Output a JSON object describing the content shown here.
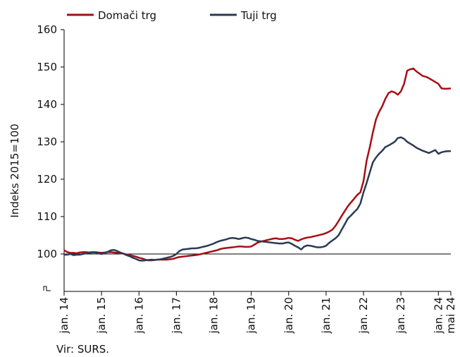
{
  "chart_data": {
    "type": "line",
    "y_label": "Indeks 2015=100",
    "source": "Vir: SURS.",
    "categories": [
      "jan. 14",
      null,
      null,
      null,
      null,
      null,
      null,
      null,
      null,
      null,
      null,
      null,
      "jan. 15",
      null,
      null,
      null,
      null,
      null,
      null,
      null,
      null,
      null,
      null,
      null,
      "jan. 16",
      null,
      null,
      null,
      null,
      null,
      null,
      null,
      null,
      null,
      null,
      null,
      "jan. 17",
      null,
      null,
      null,
      null,
      null,
      null,
      null,
      null,
      null,
      null,
      null,
      "jan. 18",
      null,
      null,
      null,
      null,
      null,
      null,
      null,
      null,
      null,
      null,
      null,
      "jan. 19",
      null,
      null,
      null,
      null,
      null,
      null,
      null,
      null,
      null,
      null,
      null,
      "jan. 20",
      null,
      null,
      null,
      null,
      null,
      null,
      null,
      null,
      null,
      null,
      null,
      "jan. 21",
      null,
      null,
      null,
      null,
      null,
      null,
      null,
      null,
      null,
      null,
      null,
      "jan. 22",
      null,
      null,
      null,
      null,
      null,
      null,
      null,
      null,
      null,
      null,
      null,
      "jan. 23",
      null,
      null,
      null,
      null,
      null,
      null,
      null,
      null,
      null,
      null,
      null,
      "jan. 24",
      null,
      null,
      null,
      "mai 24"
    ],
    "series": [
      {
        "name": "Domači trg",
        "color": "#a50f15",
        "values": [
          101,
          100.5,
          100.3,
          100.3,
          100.2,
          100.4,
          100.5,
          100.5,
          100.4,
          100.5,
          100.5,
          100.4,
          100.3,
          100.4,
          100.5,
          100.5,
          100.4,
          100.3,
          100.2,
          100.1,
          99.9,
          99.7,
          99.5,
          99.3,
          99.0,
          98.8,
          98.5,
          98.3,
          98.3,
          98.4,
          98.5,
          98.5,
          98.5,
          98.5,
          98.6,
          98.7,
          99.0,
          99.2,
          99.3,
          99.4,
          99.5,
          99.6,
          99.7,
          99.8,
          100.0,
          100.2,
          100.4,
          100.6,
          100.8,
          101.0,
          101.3,
          101.5,
          101.6,
          101.7,
          101.8,
          101.9,
          102.0,
          102.0,
          101.9,
          101.9,
          102.0,
          102.5,
          103.0,
          103.3,
          103.5,
          103.7,
          103.9,
          104.1,
          104.2,
          104.0,
          104.0,
          104.1,
          104.3,
          104.2,
          103.8,
          103.5,
          103.9,
          104.2,
          104.4,
          104.5,
          104.7,
          104.9,
          105.1,
          105.3,
          105.6,
          106.0,
          106.5,
          107.5,
          108.8,
          110.2,
          111.5,
          112.8,
          113.8,
          114.8,
          115.8,
          116.5,
          119.5,
          125.0,
          128.5,
          132.5,
          136.0,
          138.0,
          139.5,
          141.5,
          143.0,
          143.5,
          143.2,
          142.6,
          143.5,
          145.5,
          149.0,
          149.4,
          149.6,
          148.8,
          148.2,
          147.6,
          147.4,
          147.0,
          146.5,
          146.0,
          145.5,
          144.3,
          144.2,
          144.2,
          144.3
        ]
      },
      {
        "name": "Tuji trg",
        "color": "#2b3a55",
        "values": [
          99.8,
          99.8,
          100.0,
          99.7,
          99.8,
          99.8,
          100.0,
          100.2,
          100.3,
          100.4,
          100.4,
          100.2,
          100.0,
          100.2,
          100.6,
          101.0,
          101.1,
          100.8,
          100.4,
          100.1,
          99.7,
          99.4,
          99.0,
          98.7,
          98.3,
          98.2,
          98.3,
          98.4,
          98.5,
          98.4,
          98.5,
          98.6,
          98.8,
          99.0,
          99.2,
          99.5,
          100.0,
          100.8,
          101.2,
          101.3,
          101.4,
          101.5,
          101.5,
          101.6,
          101.8,
          102.0,
          102.2,
          102.5,
          102.8,
          103.2,
          103.5,
          103.7,
          103.9,
          104.2,
          104.3,
          104.2,
          104.0,
          104.2,
          104.4,
          104.3,
          104.0,
          103.8,
          103.5,
          103.4,
          103.3,
          103.2,
          103.1,
          103.0,
          102.9,
          102.8,
          102.8,
          103.0,
          103.1,
          102.7,
          102.2,
          101.8,
          101.2,
          102.0,
          102.3,
          102.2,
          102.0,
          101.8,
          101.8,
          101.9,
          102.2,
          103.0,
          103.6,
          104.2,
          105.0,
          106.5,
          108.0,
          109.5,
          110.3,
          111.2,
          112.0,
          113.5,
          116.5,
          119.0,
          121.8,
          124.5,
          125.8,
          126.8,
          127.6,
          128.6,
          129.0,
          129.5,
          130.0,
          131.0,
          131.2,
          130.8,
          130.0,
          129.5,
          129.0,
          128.4,
          128.0,
          127.6,
          127.3,
          127.0,
          127.4,
          127.8,
          126.8,
          127.2,
          127.4,
          127.5,
          127.5
        ]
      }
    ],
    "reference_line": 100,
    "ylim": [
      90,
      160
    ],
    "yticks": [
      100,
      110,
      120,
      130,
      140,
      150,
      160
    ],
    "grid": false,
    "legend": "top"
  }
}
